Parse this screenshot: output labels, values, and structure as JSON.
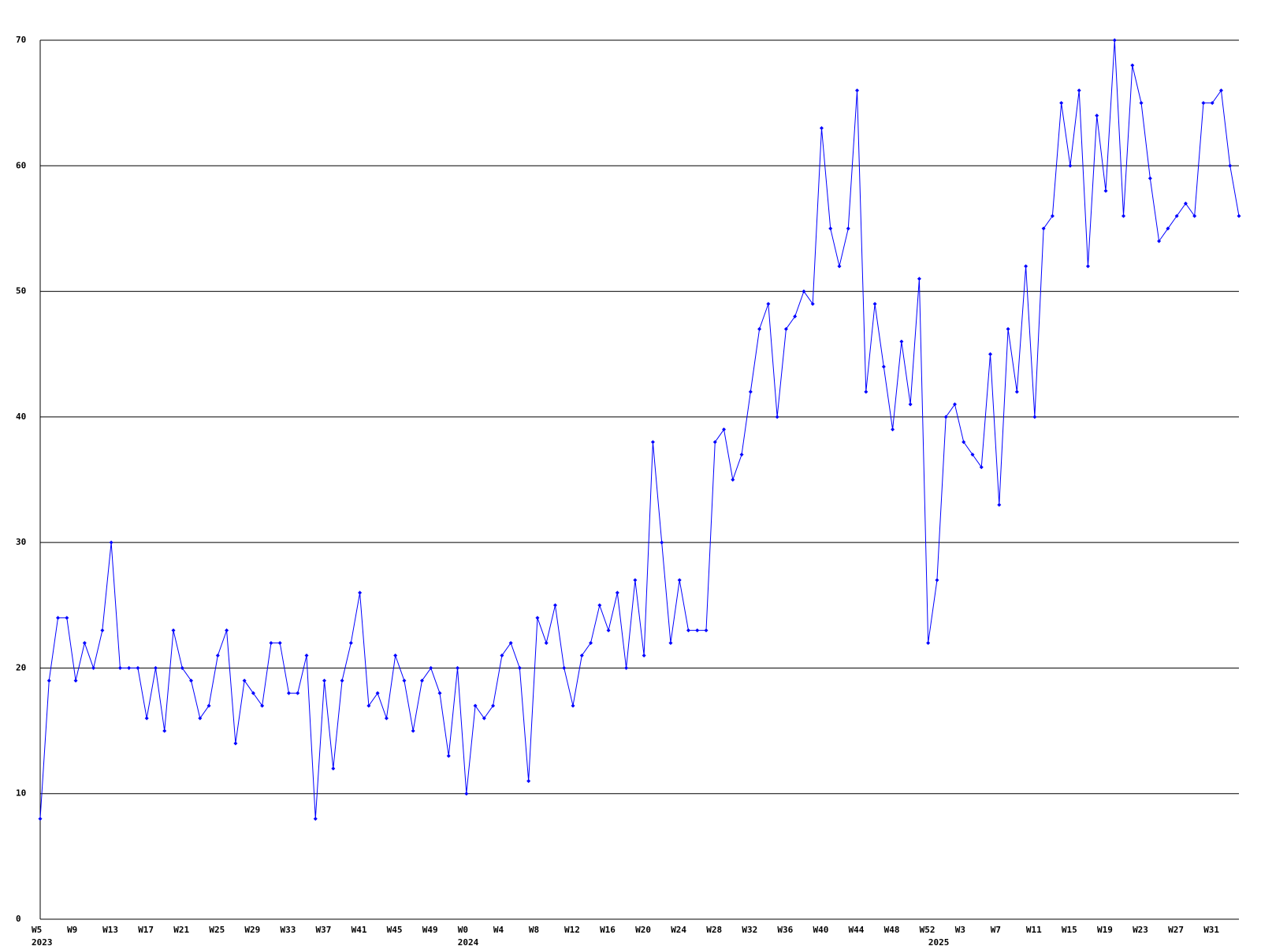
{
  "chart_data": {
    "type": "line",
    "categories": [
      "W5",
      null,
      null,
      null,
      "W9",
      null,
      null,
      null,
      "W13",
      null,
      null,
      null,
      "W17",
      null,
      null,
      null,
      "W21",
      null,
      null,
      null,
      "W25",
      null,
      null,
      null,
      "W29",
      null,
      null,
      null,
      "W33",
      null,
      null,
      null,
      "W37",
      null,
      null,
      null,
      "W41",
      null,
      null,
      null,
      "W45",
      null,
      null,
      null,
      "W49",
      null,
      null,
      null,
      "W0",
      null,
      null,
      null,
      "W4",
      null,
      null,
      null,
      "W8",
      null,
      null,
      null,
      "W12",
      null,
      null,
      null,
      "W16",
      null,
      null,
      null,
      "W20",
      null,
      null,
      null,
      "W24",
      null,
      null,
      null,
      "W28",
      null,
      null,
      null,
      "W32",
      null,
      null,
      null,
      "W36",
      null,
      null,
      null,
      "W40",
      null,
      null,
      null,
      "W44",
      null,
      null,
      null,
      "W48",
      null,
      null,
      null,
      "W52",
      null,
      null,
      null,
      "W3",
      null,
      null,
      null,
      "W7",
      null,
      null,
      null,
      "W11",
      null,
      null,
      null,
      "W15",
      null,
      null,
      null,
      "W19",
      null,
      null,
      null,
      "W23",
      null,
      null,
      null,
      "W27",
      null,
      null,
      null,
      "W31",
      null,
      null,
      null
    ],
    "category_years": [
      "2023",
      null,
      null,
      null,
      null,
      null,
      null,
      null,
      null,
      null,
      null,
      null,
      null,
      null,
      null,
      null,
      null,
      null,
      null,
      null,
      null,
      null,
      null,
      null,
      null,
      null,
      null,
      null,
      null,
      null,
      null,
      null,
      null,
      null,
      null,
      null,
      null,
      null,
      null,
      null,
      null,
      null,
      null,
      null,
      null,
      null,
      null,
      null,
      "2024",
      null,
      null,
      null,
      null,
      null,
      null,
      null,
      null,
      null,
      null,
      null,
      null,
      null,
      null,
      null,
      null,
      null,
      null,
      null,
      null,
      null,
      null,
      null,
      null,
      null,
      null,
      null,
      null,
      null,
      null,
      null,
      null,
      null,
      null,
      null,
      null,
      null,
      null,
      null,
      null,
      null,
      null,
      null,
      null,
      null,
      null,
      null,
      null,
      null,
      null,
      null,
      null,
      "2025",
      null,
      null,
      null,
      null,
      null,
      null,
      null,
      null,
      null,
      null,
      null,
      null,
      null,
      null,
      null,
      null,
      null,
      null,
      null,
      null,
      null,
      null,
      null,
      null,
      null,
      null,
      null,
      null,
      null,
      null,
      null,
      null,
      null,
      null
    ],
    "values": [
      8,
      19,
      24,
      24,
      19,
      22,
      20,
      23,
      30,
      20,
      20,
      20,
      16,
      20,
      15,
      23,
      20,
      19,
      16,
      17,
      21,
      23,
      14,
      19,
      18,
      17,
      22,
      22,
      18,
      18,
      21,
      8,
      19,
      12,
      19,
      22,
      26,
      17,
      18,
      16,
      21,
      19,
      15,
      19,
      20,
      18,
      13,
      20,
      10,
      17,
      16,
      17,
      21,
      22,
      20,
      11,
      24,
      22,
      25,
      20,
      17,
      21,
      22,
      25,
      23,
      26,
      20,
      27,
      21,
      38,
      30,
      22,
      27,
      23,
      23,
      23,
      38,
      39,
      35,
      37,
      42,
      47,
      49,
      40,
      47,
      48,
      50,
      49,
      63,
      55,
      52,
      55,
      66,
      42,
      49,
      44,
      39,
      46,
      41,
      51,
      22,
      27,
      40,
      41,
      38,
      37,
      36,
      45,
      33,
      47,
      42,
      52,
      40,
      55,
      56,
      65,
      60,
      66,
      52,
      64,
      58,
      70,
      56,
      68,
      65,
      59,
      54,
      55,
      56,
      57,
      56,
      65,
      65,
      66,
      60,
      56
    ],
    "color": "#0000ff",
    "ylim": [
      0,
      70
    ],
    "yticks": [
      0,
      10,
      20,
      30,
      40,
      50,
      60,
      70
    ],
    "grid": true
  }
}
